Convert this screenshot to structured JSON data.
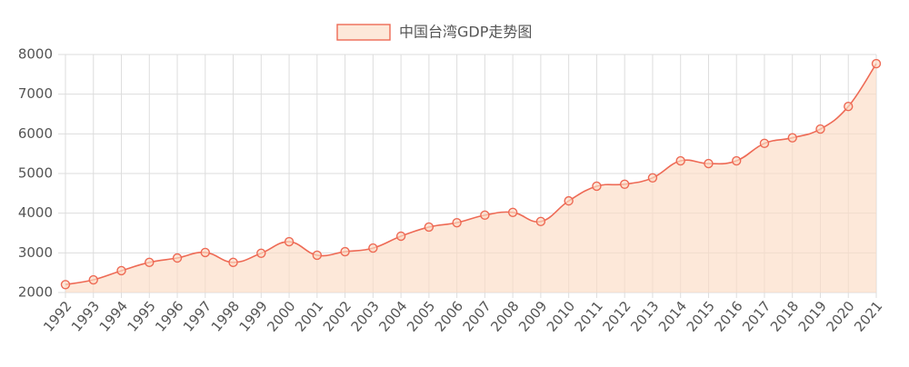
{
  "chart_data": {
    "type": "line",
    "categories": [
      "1992",
      "1993",
      "1994",
      "1995",
      "1996",
      "1997",
      "1998",
      "1999",
      "2000",
      "2001",
      "2002",
      "2003",
      "2004",
      "2005",
      "2006",
      "2007",
      "2008",
      "2009",
      "2010",
      "2011",
      "2012",
      "2013",
      "2014",
      "2015",
      "2016",
      "2017",
      "2018",
      "2019",
      "2020",
      "2021"
    ],
    "series": [
      {
        "name": "中国台湾GDP走势图",
        "color": "#ee6a55",
        "fill": "rgba(252,220,196,0.65)",
        "values": [
          2200,
          2320,
          2550,
          2760,
          2870,
          3010,
          2760,
          2990,
          3280,
          2940,
          3030,
          3120,
          3420,
          3650,
          3760,
          3950,
          4020,
          3790,
          4310,
          4680,
          4730,
          4890,
          5320,
          5250,
          5320,
          5760,
          5900,
          6120,
          6690,
          7770
        ]
      }
    ],
    "ylim": [
      2000,
      8000
    ],
    "yticks": [
      2000,
      3000,
      4000,
      5000,
      6000,
      7000,
      8000
    ],
    "grid": true,
    "legend": "top"
  }
}
